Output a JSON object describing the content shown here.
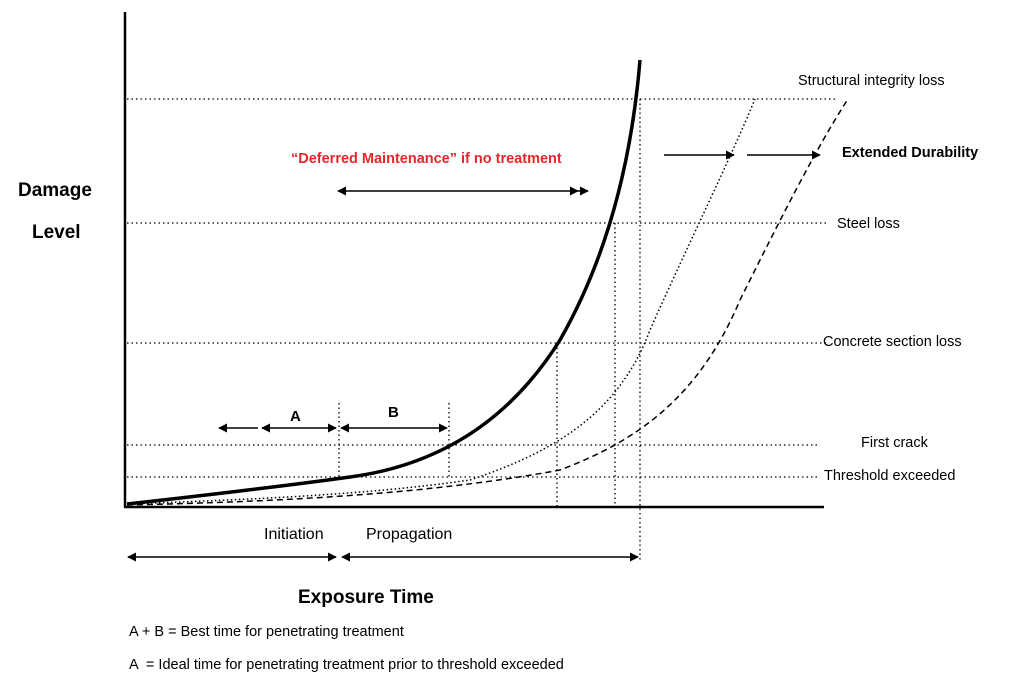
{
  "y_label": {
    "line1": "Damage",
    "line2": "Level"
  },
  "x_label": "Exposure Time",
  "levels": {
    "structural": "Structural integrity loss",
    "steel": "Steel loss",
    "concrete": "Concrete section loss",
    "crack": "First crack",
    "threshold": "Threshold exceeded"
  },
  "annotations": {
    "deferred": "“Deferred Maintenance” if no treatment",
    "extended": "Extended Durability",
    "a": "A",
    "b": "B",
    "initiation": "Initiation",
    "propagation": "Propagation"
  },
  "notes": {
    "line1": "A + B = Best time for penetrating treatment",
    "line2": "A  = Ideal time for penetrating treatment prior to threshold exceeded"
  },
  "colors": {
    "deferred": "#e8262b",
    "ink": "#000000"
  }
}
